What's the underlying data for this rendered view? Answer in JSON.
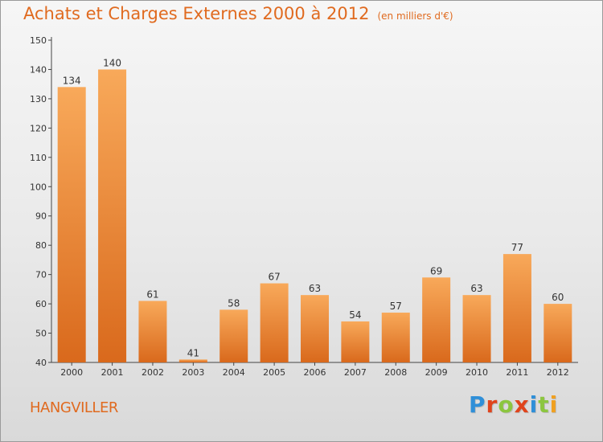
{
  "header": {
    "title": "Achats et Charges Externes 2000 à 2012",
    "subtitle": "(en milliers d'€)"
  },
  "footer": {
    "place": "HANGVILLER",
    "logo": {
      "text": "Proxiti",
      "letter_colors": [
        "#2f8fd8",
        "#e0441c",
        "#8cc63f",
        "#e0441c",
        "#2f8fd8",
        "#8cc63f",
        "#f0a020"
      ]
    }
  },
  "colors": {
    "accent": "#e06a1f",
    "bar_top": "#f8a95a",
    "bar_bottom": "#d9691c",
    "axis": "#444444",
    "tick_text": "#333333"
  },
  "chart_data": {
    "type": "bar",
    "title": "Achats et Charges Externes 2000 à 2012",
    "subtitle": "(en milliers d'€)",
    "categories": [
      "2000",
      "2001",
      "2002",
      "2003",
      "2004",
      "2005",
      "2006",
      "2007",
      "2008",
      "2009",
      "2010",
      "2011",
      "2012"
    ],
    "values": [
      134,
      140,
      61,
      41,
      58,
      67,
      63,
      54,
      57,
      69,
      63,
      77,
      60
    ],
    "ylim": [
      40,
      150
    ],
    "yticks": [
      40,
      50,
      60,
      70,
      80,
      90,
      100,
      110,
      120,
      130,
      140,
      150
    ],
    "xlabel": "",
    "ylabel": "",
    "grid": false,
    "data_labels": true
  }
}
